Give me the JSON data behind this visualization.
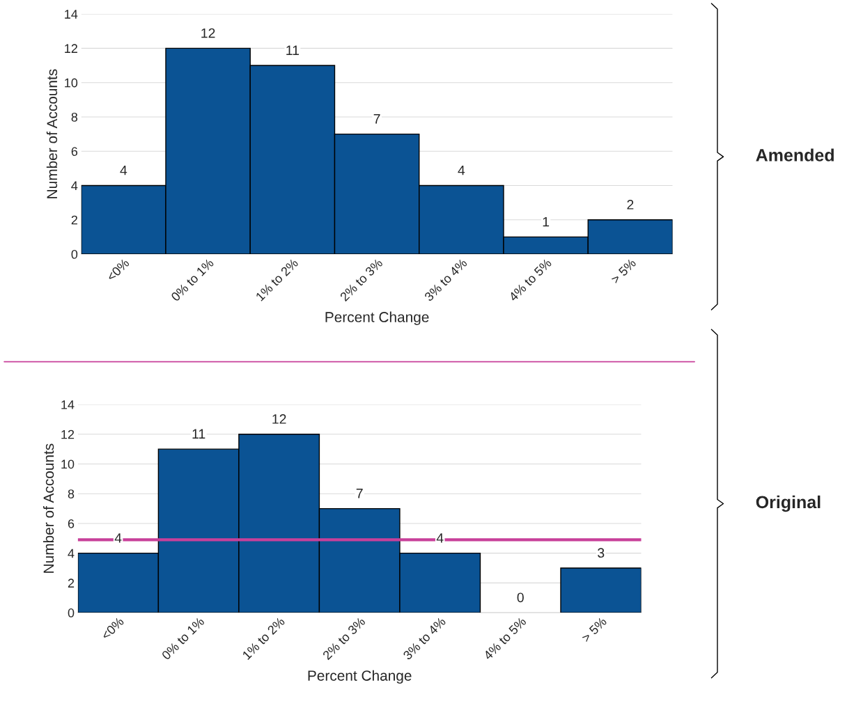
{
  "chart_data": [
    {
      "type": "bar",
      "categories": [
        "<0%",
        "0% to 1%",
        "1% to 2%",
        "2% to 3%",
        "3% to 4%",
        "4% to 5%",
        "> 5%"
      ],
      "values": [
        4,
        12,
        11,
        7,
        4,
        1,
        2
      ],
      "color": "#0b5394",
      "xlabel": "Percent Change",
      "ylabel": "Number of Accounts",
      "ylim": [
        0,
        14
      ],
      "yticks": [
        0,
        2,
        4,
        6,
        8,
        10,
        12,
        14
      ],
      "grid": "y",
      "data_labels": true,
      "annotations": [
        "Amended"
      ]
    },
    {
      "type": "bar",
      "categories": [
        "<0%",
        "0% to 1%",
        "1% to 2%",
        "2% to 3%",
        "3% to 4%",
        "4% to 5%",
        "> 5%"
      ],
      "values": [
        4,
        11,
        12,
        7,
        4,
        0,
        3
      ],
      "color": "#0b5394",
      "xlabel": "Percent Change",
      "ylabel": "Number of Accounts",
      "ylim": [
        0,
        14
      ],
      "yticks": [
        0,
        2,
        4,
        6,
        8,
        10,
        12,
        14
      ],
      "grid": "y",
      "data_labels": true,
      "annotations": [
        "Original"
      ],
      "ref_lines": [
        {
          "axis": "y",
          "value": 4.9,
          "color": "#c8409a"
        }
      ]
    }
  ]
}
